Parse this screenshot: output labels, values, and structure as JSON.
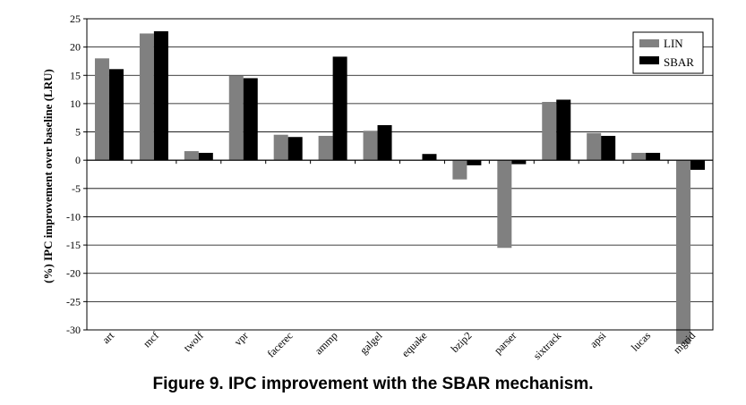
{
  "caption": "Figure 9. IPC improvement with the SBAR mechanism.",
  "colors": {
    "LIN": "#808080",
    "SBAR": "#000000"
  },
  "chart_data": {
    "type": "bar",
    "title": "",
    "xlabel": "",
    "ylabel": "(%) IPC improvement over baseline (LRU)",
    "ylim": [
      -30,
      25
    ],
    "yticks": [
      25,
      20,
      15,
      10,
      5,
      0,
      -5,
      -10,
      -15,
      -20,
      -25,
      -30
    ],
    "grid": true,
    "legend_position": "top-right",
    "categories": [
      "art",
      "mcf",
      "twolf",
      "vpr",
      "facerec",
      "ammp",
      "galgel",
      "equake",
      "bzip2",
      "parser",
      "sixtrack",
      "apsi",
      "lucas",
      "mgrid"
    ],
    "series": [
      {
        "name": "LIN",
        "values": [
          18.0,
          22.4,
          1.6,
          15.0,
          4.5,
          4.3,
          5.2,
          0.1,
          -3.4,
          -15.5,
          10.3,
          4.8,
          1.3,
          -32.5
        ]
      },
      {
        "name": "SBAR",
        "values": [
          16.1,
          22.8,
          1.3,
          14.5,
          4.1,
          18.3,
          6.2,
          1.1,
          -0.9,
          -0.7,
          10.7,
          4.3,
          1.3,
          -1.7
        ]
      }
    ]
  }
}
